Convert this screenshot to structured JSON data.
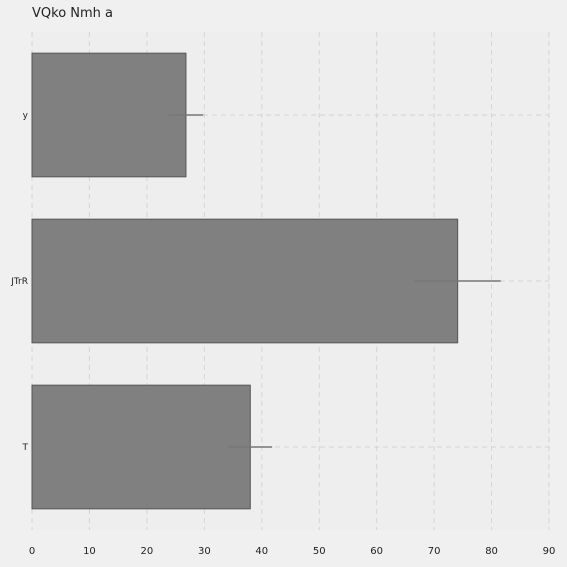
{
  "chart_data": {
    "type": "bar",
    "orientation": "horizontal",
    "title": "VQko  Nmh a",
    "xlabel": "",
    "ylabel": "",
    "categories": [
      "y",
      "JTrR",
      "T"
    ],
    "values": [
      26.8,
      74.1,
      38.0
    ],
    "error": [
      3,
      7.5,
      3.8
    ],
    "xlim": [
      0,
      90
    ],
    "xticks": [
      0,
      10,
      20,
      30,
      40,
      50,
      60,
      70,
      80,
      90
    ],
    "grid": true,
    "colors": {
      "bar": "#808080",
      "bar_edge": "#555555",
      "error": "#777777",
      "grid": "#d4d4d4",
      "background": "#f0f0f0",
      "plot_background": "#eeeeee"
    }
  }
}
